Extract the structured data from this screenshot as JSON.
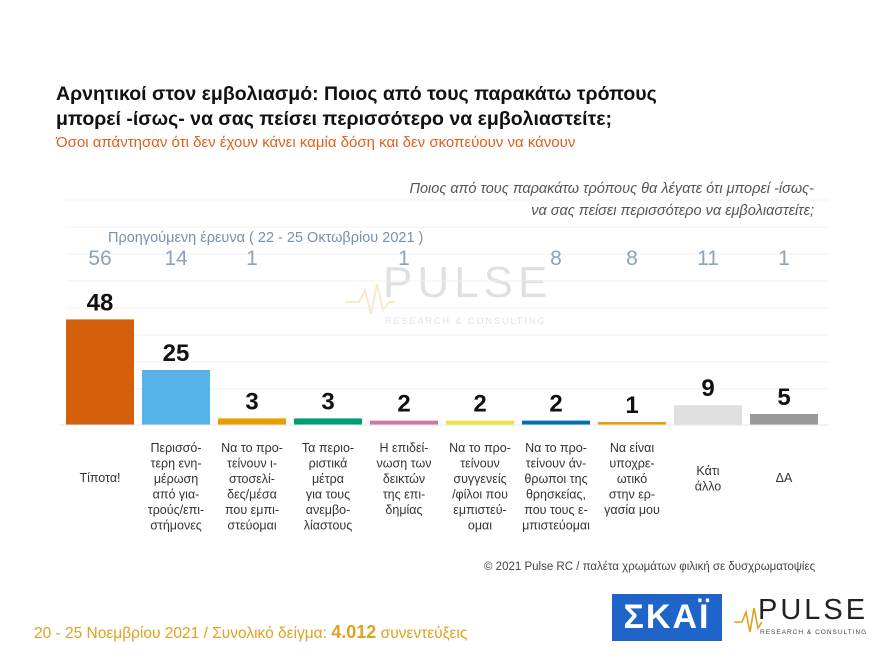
{
  "title_line1": "Αρνητικοί στον εμβολιασμό: Ποιος από τους παρακάτω τρόπους",
  "title_line2": "μπορεί -ίσως- να σας πείσει περισσότερο να εμβολιαστείτε;",
  "subtitle": "Όσοι απάντησαν ότι δεν έχουν κάνει καμία δόση και δεν σκοπεύουν να κάνουν",
  "question_line1": "Ποιος από τους παρακάτω τρόπους θα λέγατε ότι μπορεί -ίσως-",
  "question_line2": "να σας πείσει περισσότερο να εμβολιαστείτε;",
  "previous_survey_label": "Προηγούμενη έρευνα  ( 22 - 25 Οκτωβρίου 2021 )",
  "watermark": {
    "word": "PULSE",
    "sub": "RESEARCH & CONSULTING"
  },
  "copyright": "© 2021 Pulse RC   /   παλέτα χρωμάτων φιλική σε δυσχρωματοψίες",
  "footer": {
    "dates": "20 - 25  Νοεμβρίου 2021  /  Συνολικό δείγμα:",
    "sample": "4.012",
    "interviews": "συνεντεύξεις"
  },
  "logos": {
    "skai": "ΣΚΑΪ",
    "pulse": "PULSE",
    "pulse_sub": "RESEARCH & CONSULTING"
  },
  "chart_data": {
    "type": "bar",
    "categories": [
      [
        "Τίποτα!"
      ],
      [
        "Περισσό-",
        "τερη ενη-",
        "μέρωση",
        "από για-",
        "τρούς/επι-",
        "στήμονες"
      ],
      [
        "Να το προ-",
        "τείνουν ι-",
        "στοσελί-",
        "δες/μέσα",
        "που εμπι-",
        "στεύομαι"
      ],
      [
        "Τα περιο-",
        "ριστικά",
        "μέτρα",
        "για τους",
        "ανεμβο-",
        "λίαστους"
      ],
      [
        "Η επιδεί-",
        "νωση των",
        "δεικτών",
        "της επι-",
        "δημίας"
      ],
      [
        "Να το προ-",
        "τείνουν",
        "συγγενείς",
        "/φίλοι που",
        "εμπιστεύ-",
        "ομαι"
      ],
      [
        "Να το προ-",
        "τείνουν άν-",
        "θρωποι της",
        "θρησκείας,",
        "που τους ε-",
        "μπιστεύομαι"
      ],
      [
        "Να είναι",
        "υποχρε-",
        "ωτικό",
        "στην ερ-",
        "γασία μου"
      ],
      [
        "Κάτι",
        "άλλο"
      ],
      [
        "ΔΑ"
      ]
    ],
    "values": [
      48,
      25,
      3,
      3,
      2,
      2,
      2,
      1,
      9,
      5
    ],
    "previous_values": [
      "56",
      "14",
      "1",
      "",
      "1",
      "",
      "8",
      "8",
      "11",
      "1"
    ],
    "colors": [
      "#d35f0a",
      "#56b4e9",
      "#e69f00",
      "#009e73",
      "#cc79a7",
      "#f0e442",
      "#0072b2",
      "#e69f00",
      "#e0e0e0",
      "#999999"
    ],
    "ylim": [
      0,
      56
    ],
    "grid": true
  }
}
